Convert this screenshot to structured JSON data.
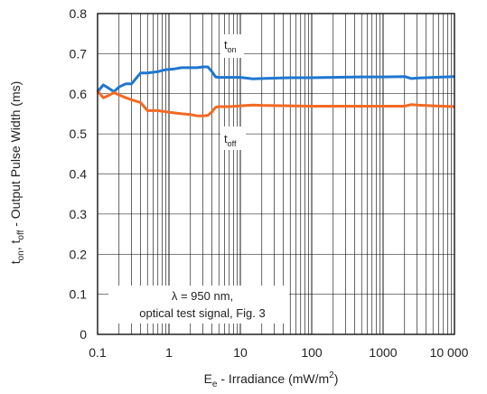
{
  "chart_data": {
    "type": "line",
    "x_scale": "log",
    "xlim": [
      0.1,
      10000
    ],
    "ylim": [
      0,
      0.8
    ],
    "grid": true,
    "x_tick_labels": [
      "0.1",
      "1",
      "10",
      "100",
      "1000",
      "10 000"
    ],
    "y_tick_labels": [
      "0",
      "0.1",
      "0.2",
      "0.3",
      "0.4",
      "0.5",
      "0.6",
      "0.7",
      "0.8"
    ],
    "xlabel": {
      "main": "E",
      "sub": "e",
      "rest": " - Irradiance (mW/m",
      "sup": "2",
      "end": ")"
    },
    "ylabel": {
      "p1": "t",
      "s1": "on",
      "p2": ", t",
      "s2": "off",
      "p3": " - Output Pulse Width (ms)"
    },
    "annotation": [
      "λ = 950 nm,",
      "optical test signal, Fig. 3"
    ],
    "series": [
      {
        "name_main": "t",
        "name_sub": "on",
        "color": "#1f77d0",
        "x": [
          0.1,
          0.12,
          0.14,
          0.17,
          0.2,
          0.25,
          0.3,
          0.4,
          0.5,
          0.7,
          0.9,
          1.2,
          1.5,
          2,
          2.5,
          3,
          3.5,
          4,
          4.5,
          5,
          7,
          10,
          15,
          20,
          50,
          100,
          500,
          1000,
          2000,
          2500,
          3000,
          5000,
          10000
        ],
        "y": [
          0.605,
          0.622,
          0.615,
          0.605,
          0.617,
          0.625,
          0.625,
          0.652,
          0.652,
          0.655,
          0.66,
          0.662,
          0.665,
          0.665,
          0.665,
          0.667,
          0.667,
          0.655,
          0.642,
          0.641,
          0.641,
          0.641,
          0.637,
          0.638,
          0.64,
          0.64,
          0.642,
          0.642,
          0.643,
          0.638,
          0.639,
          0.641,
          0.643
        ]
      },
      {
        "name_main": "t",
        "name_sub": "off",
        "color": "#f26a24",
        "x": [
          0.1,
          0.12,
          0.14,
          0.17,
          0.2,
          0.25,
          0.3,
          0.4,
          0.5,
          0.7,
          0.9,
          1.2,
          1.5,
          2,
          2.5,
          3,
          3.5,
          4,
          4.5,
          5,
          7,
          10,
          15,
          20,
          50,
          100,
          500,
          1000,
          2000,
          2500,
          3000,
          5000,
          10000
        ],
        "y": [
          0.607,
          0.59,
          0.595,
          0.603,
          0.597,
          0.59,
          0.585,
          0.578,
          0.558,
          0.558,
          0.555,
          0.552,
          0.55,
          0.548,
          0.545,
          0.545,
          0.546,
          0.555,
          0.566,
          0.568,
          0.568,
          0.57,
          0.572,
          0.571,
          0.57,
          0.569,
          0.569,
          0.569,
          0.569,
          0.573,
          0.572,
          0.57,
          0.568
        ]
      }
    ]
  }
}
